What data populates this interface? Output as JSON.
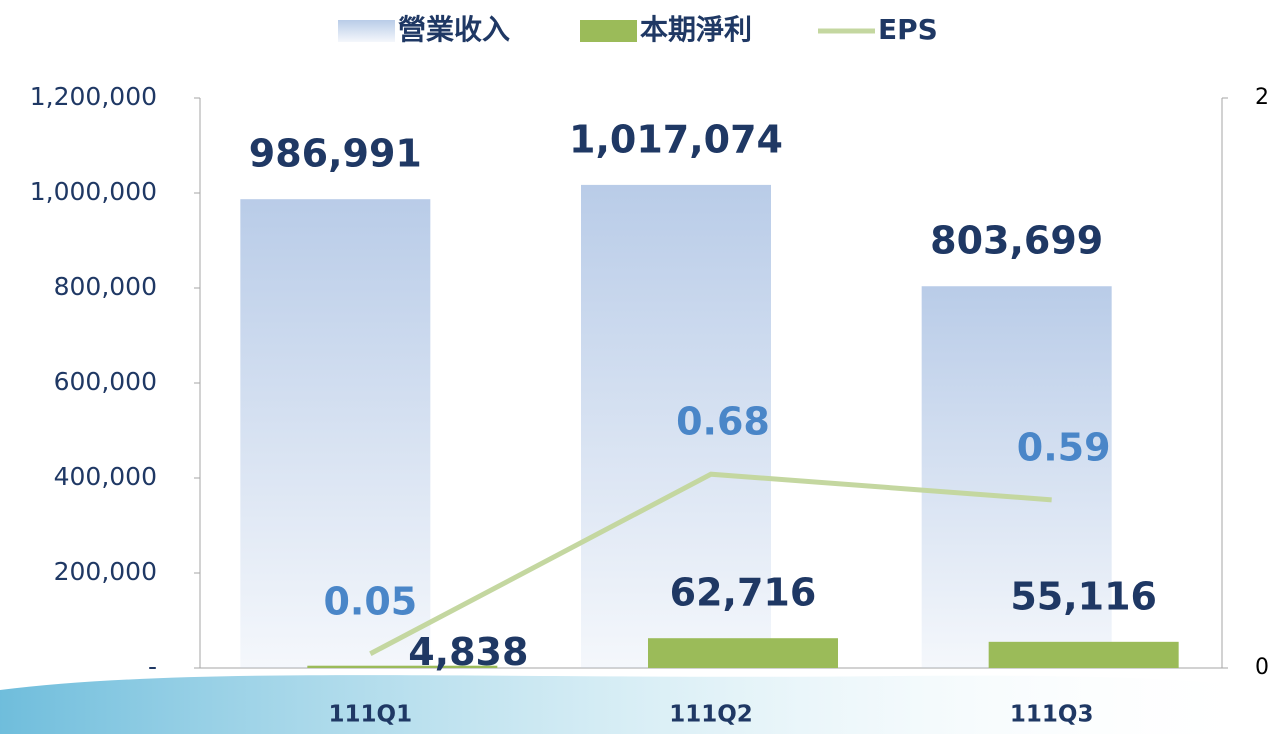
{
  "chart_data": {
    "type": "bar_line",
    "categories": [
      "111Q1",
      "111Q2",
      "111Q3"
    ],
    "series": [
      {
        "name": "營業收入",
        "color": "#b9cce8",
        "values": [
          986991,
          1017074,
          803699
        ],
        "value_labels": [
          "986,991",
          "1,017,074",
          "803,699"
        ]
      },
      {
        "name": "本期淨利",
        "color": "#9bbb59",
        "values": [
          4838,
          62716,
          55116
        ],
        "value_labels": [
          "4,838",
          "62,716",
          "55,116"
        ]
      },
      {
        "name": "EPS",
        "color": "#c4d7a0",
        "axis": "y2",
        "values": [
          0.05,
          0.68,
          0.59
        ]
      }
    ],
    "ylim": [
      0,
      1200000
    ],
    "yticks": [
      {
        "value": 0,
        "label": "-"
      },
      {
        "value": 200000,
        "label": "200,000"
      },
      {
        "value": 400000,
        "label": "400,000"
      },
      {
        "value": 600000,
        "label": "600,000"
      },
      {
        "value": 800000,
        "label": "800,000"
      },
      {
        "value": 1000000,
        "label": "1,000,000"
      },
      {
        "value": 1200000,
        "label": "1,200,000"
      }
    ],
    "y2lim": [
      0,
      2
    ],
    "y2ticks": [
      0,
      2
    ]
  }
}
